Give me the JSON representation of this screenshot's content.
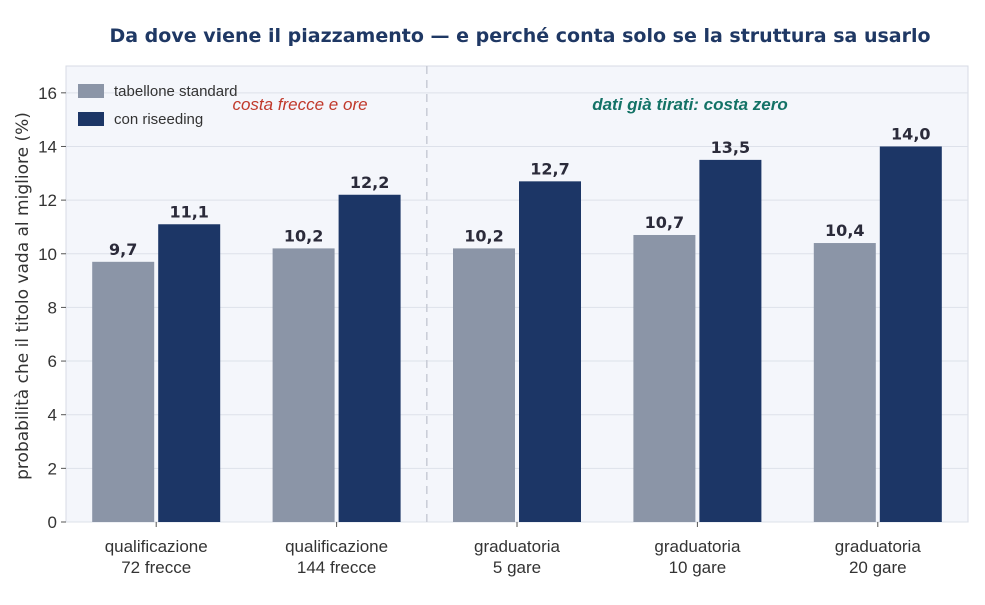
{
  "chart_data": {
    "type": "bar",
    "title": "Da dove viene il piazzamento — e perché conta solo se la struttura sa usarlo",
    "ylabel": "probabilità che il titolo vada al migliore (%)",
    "xlabel": "",
    "ylim": [
      0,
      17
    ],
    "yticks": [
      "0",
      "2",
      "4",
      "6",
      "8",
      "10",
      "12",
      "14",
      "16"
    ],
    "ytick_values": [
      0,
      2,
      4,
      6,
      8,
      10,
      12,
      14,
      16
    ],
    "grid": true,
    "legend_position": "top-left",
    "categories": [
      [
        "qualificazione",
        "72 frecce"
      ],
      [
        "qualificazione",
        "144 frecce"
      ],
      [
        "graduatoria",
        "5 gare"
      ],
      [
        "graduatoria",
        "10 gare"
      ],
      [
        "graduatoria",
        "20 gare"
      ]
    ],
    "series": [
      {
        "name": "tabellone standard",
        "color": "#8b95a7",
        "values": [
          9.7,
          10.2,
          10.2,
          10.7,
          10.4
        ],
        "labels": [
          "9,7",
          "10,2",
          "10,2",
          "10,7",
          "10,4"
        ]
      },
      {
        "name": "con riseeding",
        "color": "#1c3666",
        "values": [
          11.1,
          12.2,
          12.7,
          13.5,
          14.0
        ],
        "labels": [
          "11,1",
          "12,2",
          "12,7",
          "13,5",
          "14,0"
        ]
      }
    ],
    "annotations": [
      {
        "text": "costa frecce e ore",
        "color": "#c0392b",
        "bold": false
      },
      {
        "text": "dati già tirati: costa zero",
        "color": "#137266",
        "bold": true
      }
    ],
    "divider": "dashed vertical line between category 2 and category 3"
  }
}
